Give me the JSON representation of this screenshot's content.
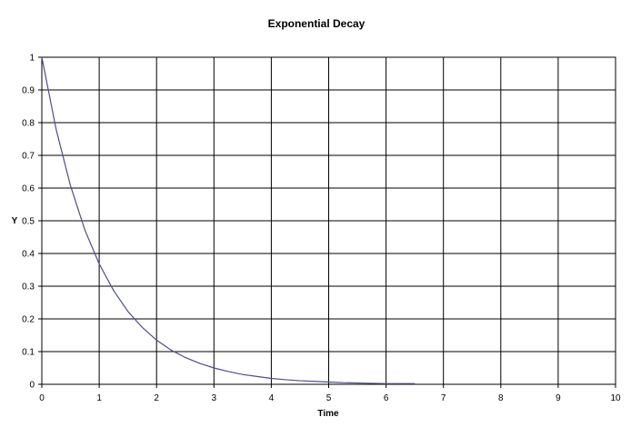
{
  "chart_data": {
    "type": "line",
    "title": "Exponential Decay",
    "xlabel": "Time",
    "ylabel": "Y",
    "xlim": [
      0,
      10
    ],
    "ylim": [
      0,
      1
    ],
    "x_ticks": [
      "0",
      "1",
      "2",
      "3",
      "4",
      "5",
      "6",
      "7",
      "8",
      "9",
      "10"
    ],
    "y_ticks": [
      "0",
      "0.1",
      "0.2",
      "0.3",
      "0.4",
      "0.5",
      "0.6",
      "0.7",
      "0.8",
      "0.9",
      "1"
    ],
    "grid": true,
    "legend": "none",
    "series": [
      {
        "color": "#4d4d8f",
        "x": [
          0,
          0.25,
          0.5,
          0.75,
          1,
          1.25,
          1.5,
          1.75,
          2,
          2.25,
          2.5,
          2.75,
          3,
          3.25,
          3.5,
          3.75,
          4,
          4.25,
          4.5,
          4.75,
          5,
          5.25,
          5.5,
          5.75,
          6,
          6.25,
          6.5
        ],
        "y": [
          1,
          0.779,
          0.607,
          0.472,
          0.368,
          0.287,
          0.223,
          0.174,
          0.135,
          0.105,
          0.082,
          0.064,
          0.05,
          0.039,
          0.03,
          0.024,
          0.018,
          0.014,
          0.011,
          0.009,
          0.007,
          0.005,
          0.004,
          0.003,
          0.002,
          0.002,
          0.002
        ]
      }
    ]
  }
}
